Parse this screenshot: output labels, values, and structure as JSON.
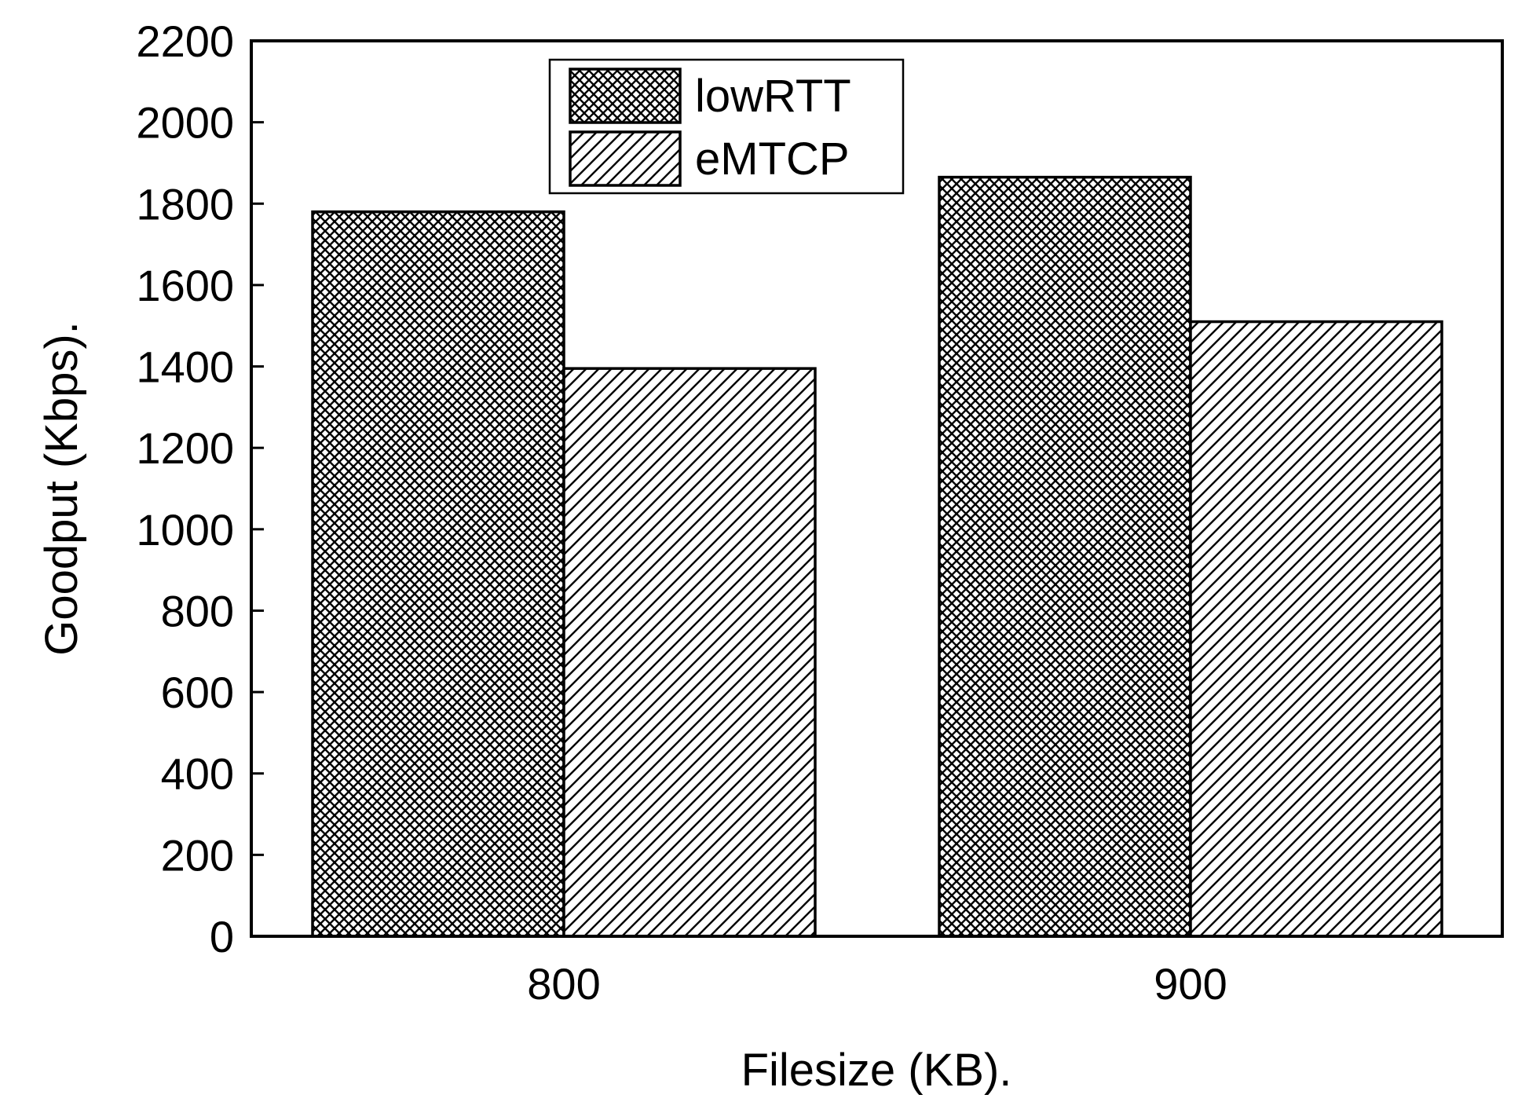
{
  "chart_data": {
    "type": "bar",
    "title": "",
    "xlabel": "Filesize (KB).",
    "ylabel": "Goodput (Kbps).",
    "categories": [
      "800",
      "900"
    ],
    "series": [
      {
        "name": "lowRTT",
        "values": [
          1780,
          1865
        ],
        "pattern": "crosshatch"
      },
      {
        "name": "eMTCP",
        "values": [
          1395,
          1510
        ],
        "pattern": "diagonal"
      }
    ],
    "ylim": [
      0,
      2200
    ],
    "yticks": [
      "0",
      "200",
      "400",
      "600",
      "800",
      "1000",
      "1200",
      "1400",
      "1600",
      "1800",
      "2000",
      "2200"
    ],
    "grid": false,
    "legend_position": "top-center",
    "colors": {
      "bar_fill": "#ffffff",
      "pattern": "#000000",
      "outline": "#000000"
    }
  }
}
